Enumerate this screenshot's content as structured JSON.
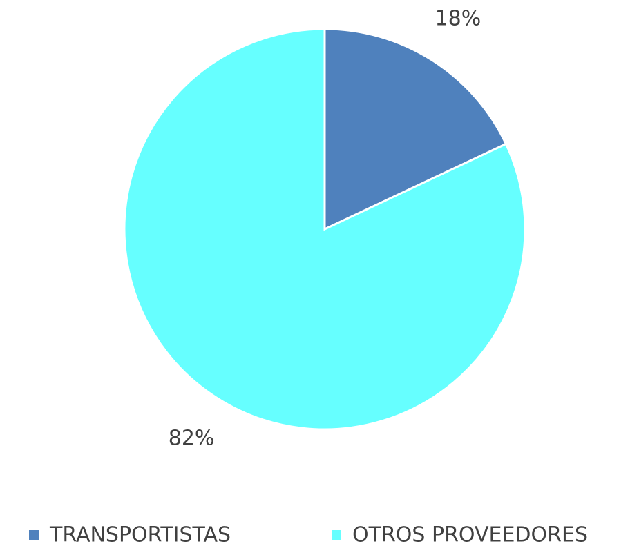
{
  "chart_data": {
    "type": "pie",
    "categories": [
      "TRANSPORTISTAS",
      "OTROS PROVEEDORES"
    ],
    "values": [
      18,
      82
    ],
    "value_labels": [
      "18%",
      "82%"
    ],
    "colors": [
      "#4f81bd",
      "#66ffff"
    ],
    "legend": "bottom"
  }
}
